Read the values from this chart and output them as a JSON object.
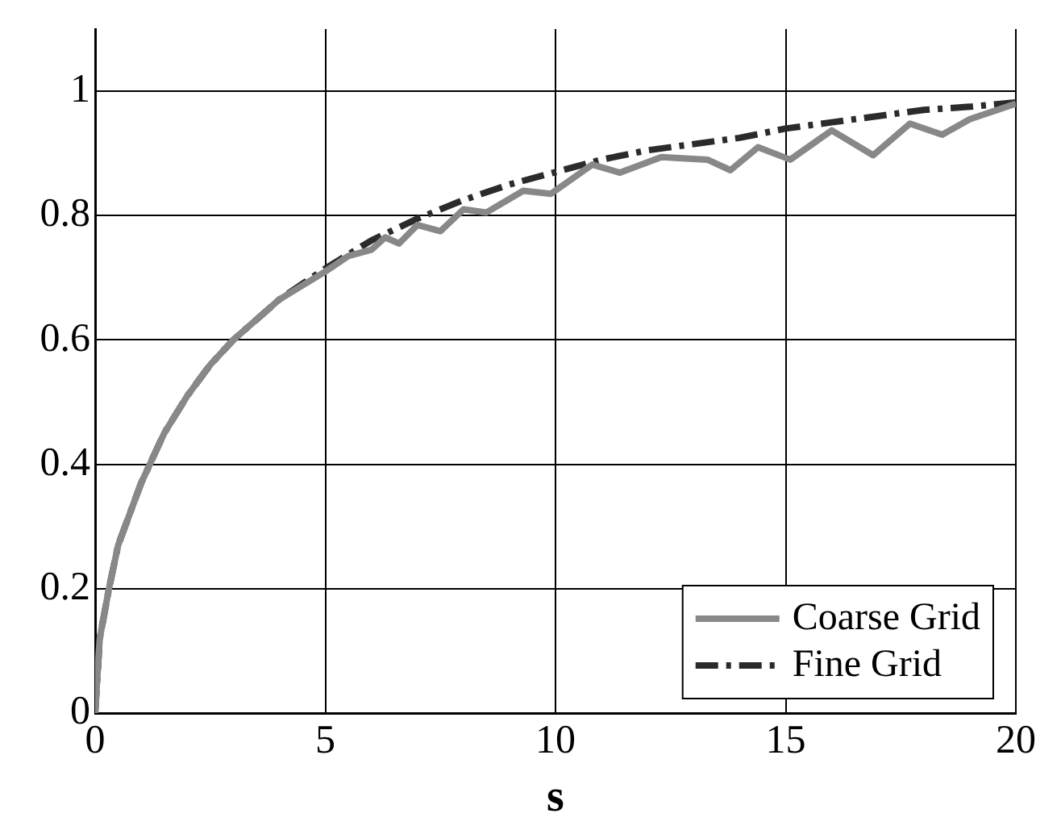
{
  "chart_data": {
    "type": "line",
    "xlabel": "s",
    "xlim": [
      0,
      20
    ],
    "xticks": [
      0,
      5,
      10,
      15,
      20
    ],
    "ylim": [
      0,
      1.1
    ],
    "yticks": [
      0,
      0.2,
      0.4,
      0.6,
      0.8,
      1
    ],
    "grid": true,
    "legend": "bottom right",
    "marker": "none",
    "series": [
      {
        "name": "Coarse Grid",
        "color": "#888888",
        "line_style": "solid",
        "x": [
          0,
          0.1,
          0.3,
          0.5,
          1,
          1.5,
          2,
          2.5,
          3,
          4,
          5,
          5.5,
          6,
          6.3,
          6.6,
          7,
          7.5,
          8,
          8.5,
          9.3,
          9.9,
          10.8,
          11.4,
          12.3,
          13.3,
          13.8,
          14.4,
          15.1,
          16,
          16.9,
          17.7,
          18.4,
          19,
          20
        ],
        "values": [
          0,
          0.12,
          0.2,
          0.27,
          0.37,
          0.45,
          0.51,
          0.56,
          0.6,
          0.665,
          0.71,
          0.735,
          0.745,
          0.765,
          0.755,
          0.785,
          0.775,
          0.81,
          0.805,
          0.84,
          0.835,
          0.882,
          0.869,
          0.894,
          0.89,
          0.873,
          0.91,
          0.89,
          0.937,
          0.897,
          0.948,
          0.93,
          0.955,
          0.98
        ]
      },
      {
        "name": "Fine Grid",
        "color": "#2b2b2b",
        "line_style": "dashed",
        "x": [
          0,
          0.1,
          0.3,
          0.5,
          1,
          1.5,
          2,
          2.5,
          3,
          4,
          5,
          6,
          7,
          8,
          9,
          10,
          11,
          12,
          13,
          14,
          15,
          16,
          17,
          18,
          19,
          20
        ],
        "values": [
          0,
          0.12,
          0.2,
          0.27,
          0.37,
          0.45,
          0.51,
          0.56,
          0.6,
          0.665,
          0.715,
          0.76,
          0.795,
          0.825,
          0.85,
          0.87,
          0.89,
          0.905,
          0.915,
          0.925,
          0.94,
          0.95,
          0.96,
          0.97,
          0.975,
          0.982
        ]
      }
    ]
  }
}
